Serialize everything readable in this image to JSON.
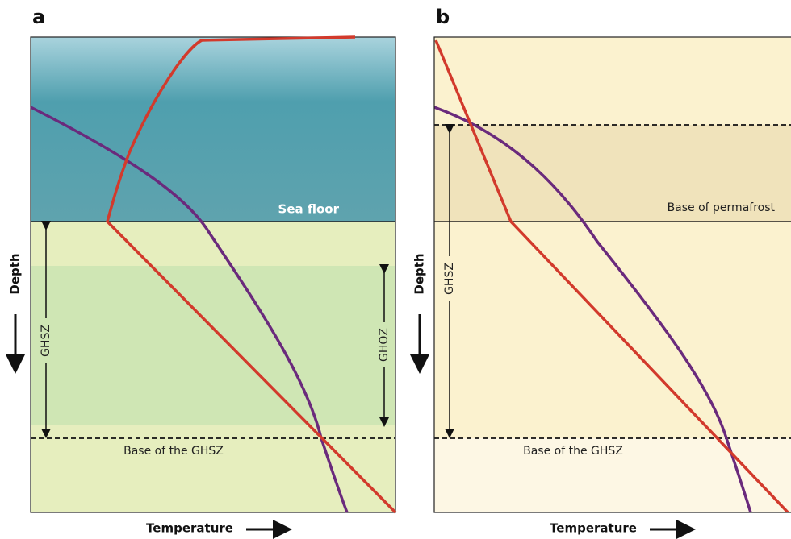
{
  "panels": [
    {
      "label": "a",
      "sea_floor": "Sea floor",
      "depth": "Depth",
      "ghsz": "GHSZ",
      "ghoz": "GHOZ",
      "base": "Base of the GHSZ",
      "temperature": "Temperature"
    },
    {
      "label": "b",
      "depth": "Depth",
      "ghsz": "GHSZ",
      "permafrost": "Base of permafrost",
      "base": "Base of the GHSZ",
      "temperature": "Temperature"
    }
  ]
}
